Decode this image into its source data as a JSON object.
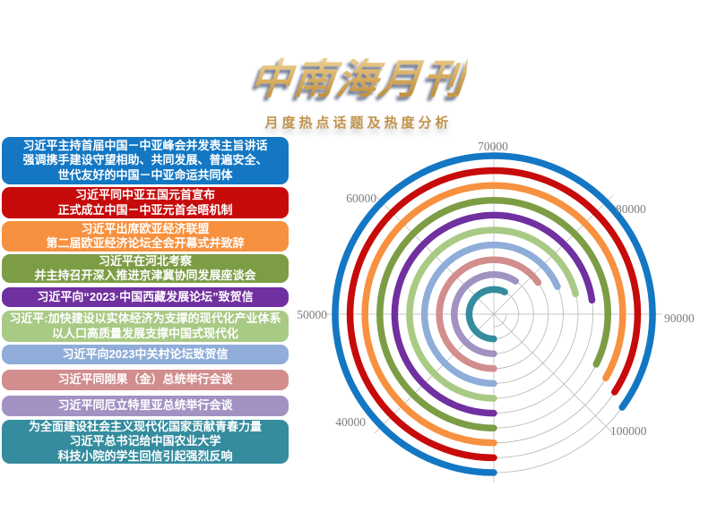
{
  "header": {
    "title": "中南海月刊",
    "subtitle": "月度热点话题及热度分析"
  },
  "topics": [
    {
      "color": "#1377c4",
      "lines": [
        "习近平主持首届中国－中亚峰会并发表主旨讲话",
        "强调携手建设守望相助、共同发展、普遍安全、",
        "世代友好的中国－中亚命运共同体"
      ]
    },
    {
      "color": "#c70a0a",
      "lines": [
        "习近平同中亚五国元首宣布",
        "正式成立中国－中亚元首会晤机制"
      ]
    },
    {
      "color": "#f7913f",
      "lines": [
        "习近平出席欧亚经济联盟",
        "第二届欧亚经济论坛全会开幕式并致辞"
      ]
    },
    {
      "color": "#7d9d45",
      "lines": [
        "习近平在河北考察",
        "并主持召开深入推进京津冀协同发展座谈会"
      ]
    },
    {
      "color": "#7030a0",
      "lines": [
        "习近平向“2023·中国西藏发展论坛”致贺信"
      ]
    },
    {
      "color": "#a9ca85",
      "lines": [
        "习近平:加快建设以实体经济为支撑的现代化产业体系",
        "以人口高质量发展支撑中国式现代化"
      ]
    },
    {
      "color": "#8fadd8",
      "lines": [
        "习近平向2023中关村论坛致贺信"
      ]
    },
    {
      "color": "#d18e8d",
      "lines": [
        "习近平同刚果（金）总统举行会谈"
      ]
    },
    {
      "color": "#a192c2",
      "lines": [
        "习近平同厄立特里亚总统举行会谈"
      ]
    },
    {
      "color": "#348c9e",
      "lines": [
        "为全面建设社会主义现代化国家贡献青春力量",
        "习近平总书记给中国农业大学",
        "科技小院的学生回信引起强烈反响"
      ]
    }
  ],
  "chart_data": {
    "type": "bar",
    "layout": "polar radial bars, start at 6 o'clock, sweep clockwise, outermost ring = rank 1",
    "title": "月度热点话题及热度分析",
    "angular_axis": {
      "min": 30000,
      "max": 110000,
      "tick_step": 10000,
      "degrees_per_tick": 45,
      "tick_labels": [
        "40000",
        "50000",
        "60000",
        "70000",
        "80000",
        "90000",
        "100000"
      ],
      "grid": "8 radial spokes + thin remainder arcs per ring"
    },
    "categories": [
      "习近平主持首届中国－中亚峰会并发表主旨讲话",
      "习近平同中亚五国元首宣布正式成立中国－中亚元首会晤机制",
      "习近平出席欧亚经济联盟第二届欧亚经济论坛全会开幕式并致辞",
      "习近平在河北考察并主持召开深入推进京津冀协同发展座谈会",
      "习近平向“2023·中国西藏发展论坛”致贺信",
      "习近平:加快建设以实体经济为支撑的现代化产业体系",
      "习近平向2023中关村论坛致贺信",
      "习近平同刚果（金）总统举行会谈",
      "习近平同厄立特里亚总统举行会谈",
      "为全面建设社会主义现代化国家贡献青春力量"
    ],
    "values": [
      98000,
      97300,
      96600,
      95800,
      88200,
      86900,
      84800,
      82100,
      77400,
      75800
    ],
    "colors": [
      "#1377c4",
      "#c70a0a",
      "#f7913f",
      "#7d9d45",
      "#7030a0",
      "#a9ca85",
      "#8fadd8",
      "#d18e8d",
      "#a192c2",
      "#348c9e"
    ],
    "grid_color": "#b5b5b5",
    "tick_label_color": "#7c7c7c"
  }
}
